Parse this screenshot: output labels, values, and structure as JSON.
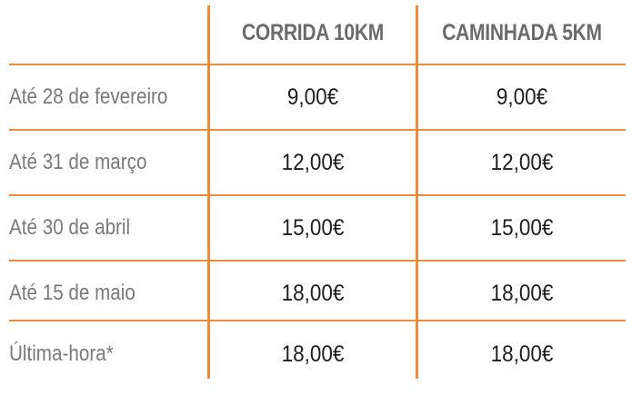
{
  "table": {
    "columns": [
      "",
      "CORRIDA 10KM",
      "CAMINHADA 5KM"
    ],
    "rows": [
      {
        "label": "Até 28 de fevereiro",
        "corrida": "9,00€",
        "caminhada": "9,00€"
      },
      {
        "label": "Até 31 de março",
        "corrida": "12,00€",
        "caminhada": "12,00€"
      },
      {
        "label": "Até 30 de abril",
        "corrida": "15,00€",
        "caminhada": "15,00€"
      },
      {
        "label": "Até 15 de maio",
        "corrida": "18,00€",
        "caminhada": "18,00€"
      },
      {
        "label": "Última-hora*",
        "corrida": "18,00€",
        "caminhada": "18,00€"
      }
    ]
  },
  "colors": {
    "grid": "#f08a3c",
    "header_text": "#6b6b6b",
    "label_text": "#7a7a7a",
    "value_text": "#1e1e1e"
  }
}
